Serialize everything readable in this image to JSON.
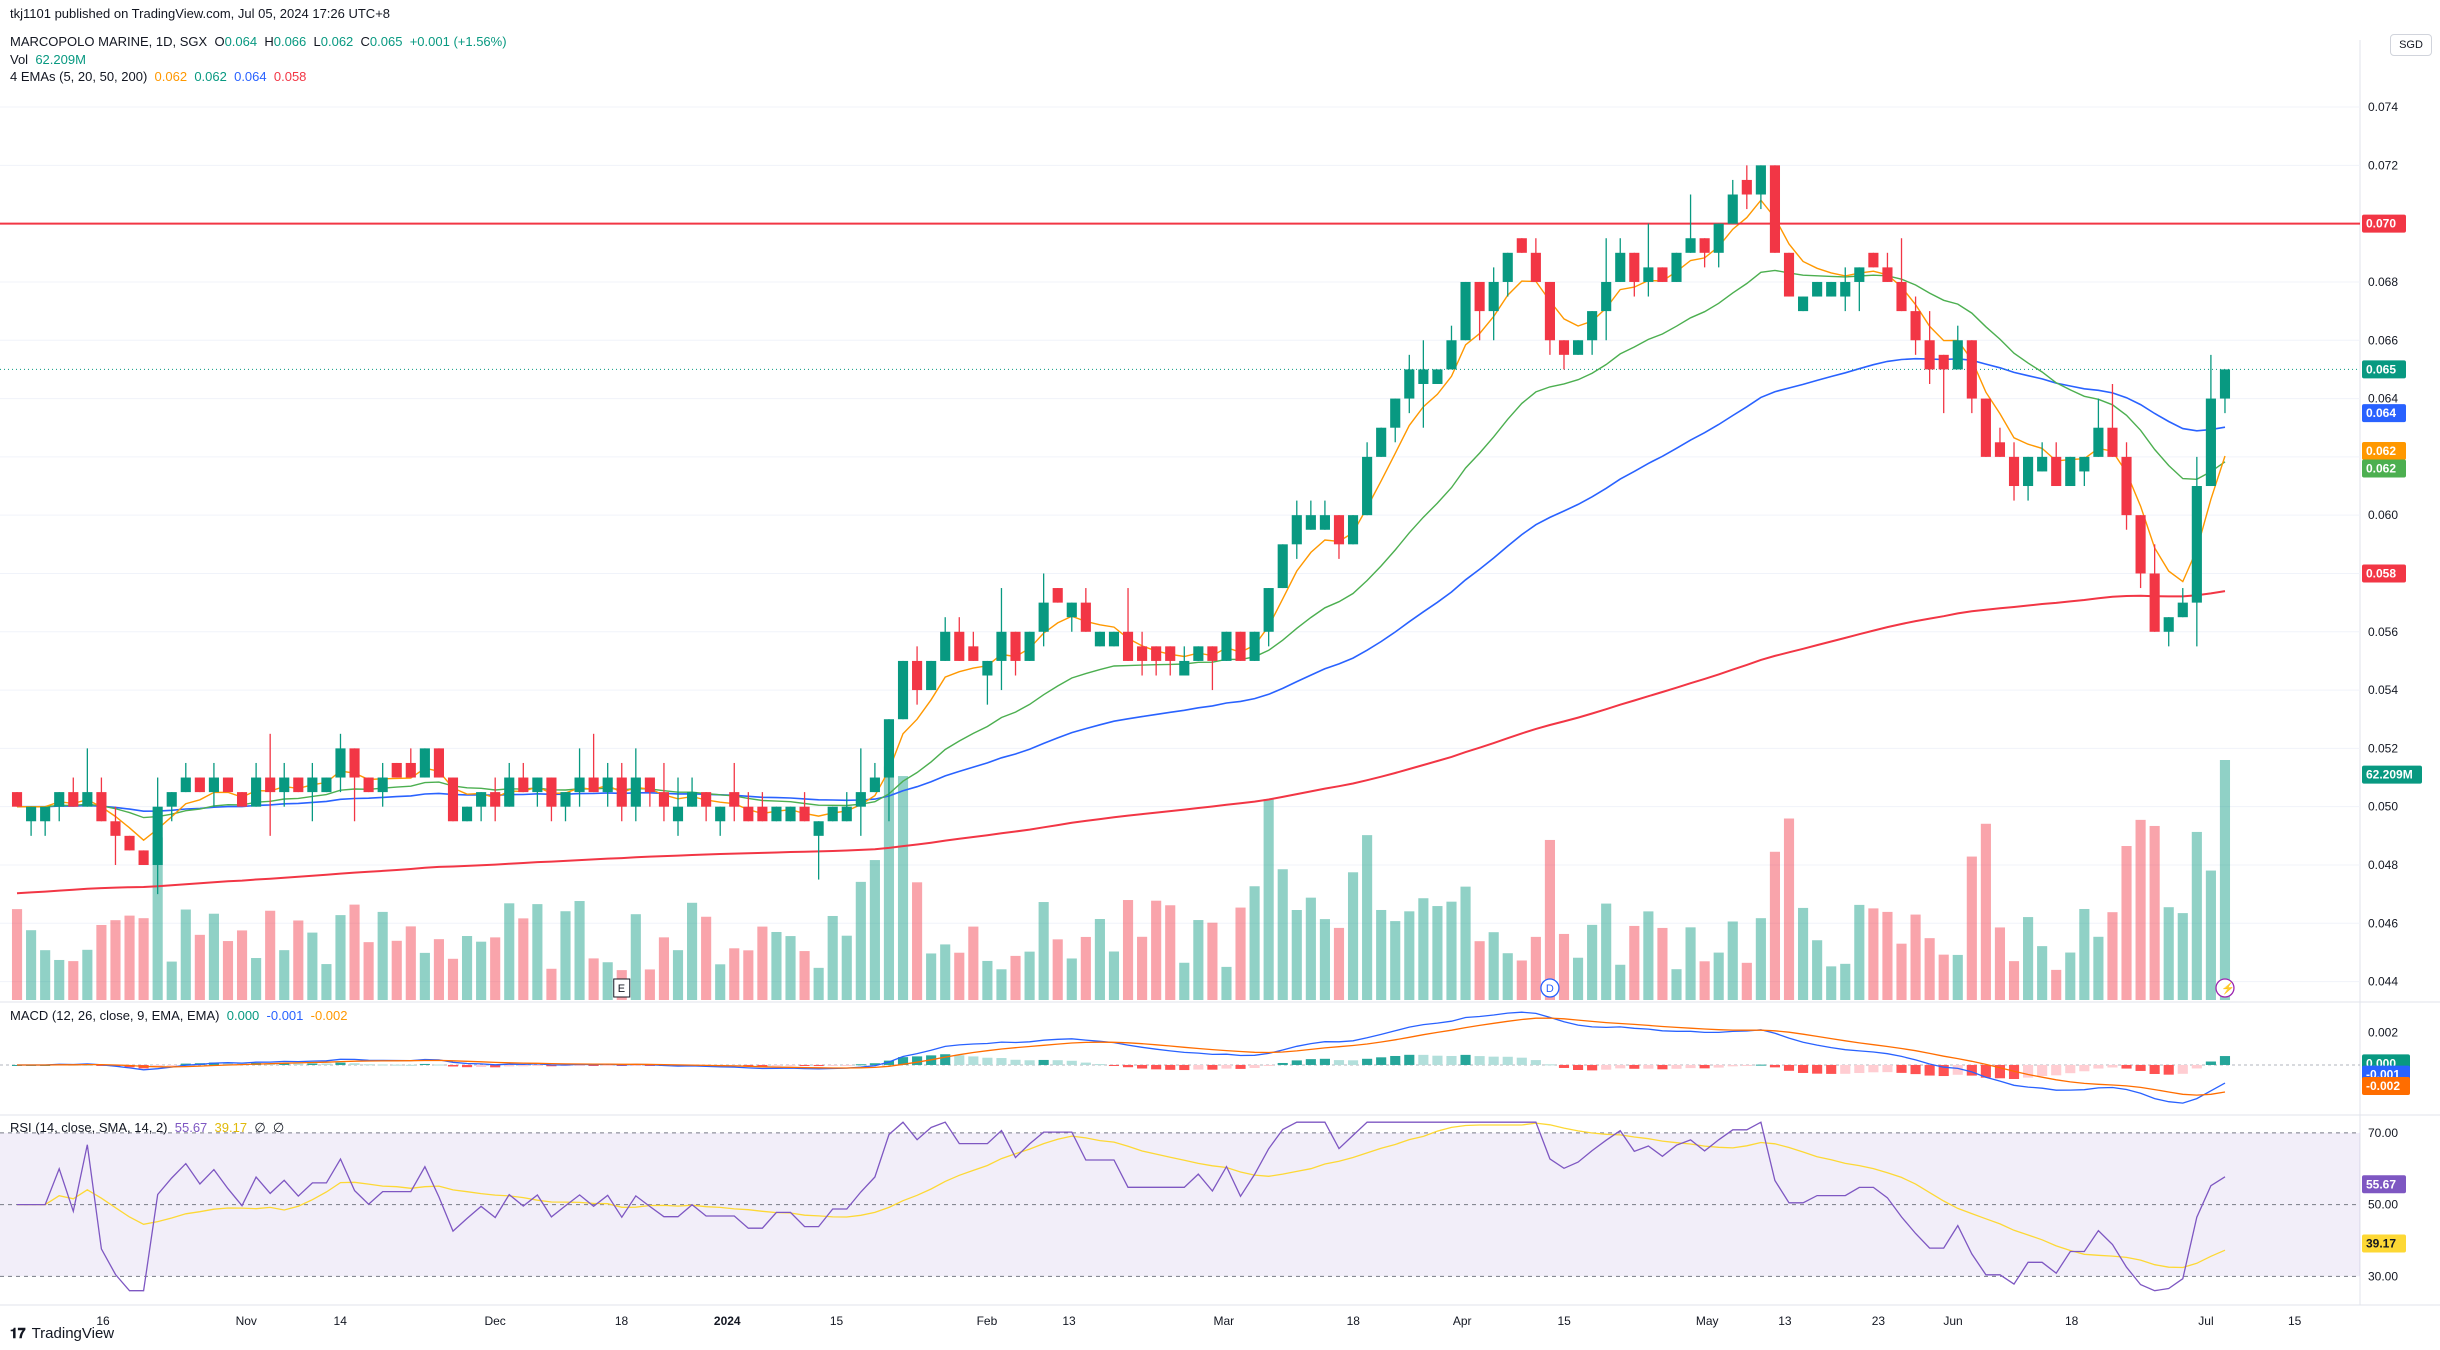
{
  "header": {
    "publisher": "tkj1101 published on TradingView.com, Jul 05, 2024 17:26 UTC+8",
    "symbol": "MARCOPOLO MARINE, 1D, SGX",
    "ohlc": {
      "o_label": "O",
      "o": "0.064",
      "h_label": "H",
      "h": "0.066",
      "l_label": "L",
      "l": "0.062",
      "c_label": "C",
      "c": "0.065",
      "change": "+0.001 (+1.56%)"
    },
    "vol_label": "Vol",
    "vol_value": "62.209M",
    "ema_label": "4 EMAs (5, 20, 50, 200)",
    "ema_values": [
      "0.062",
      "0.062",
      "0.064",
      "0.058"
    ]
  },
  "macd_header": {
    "label": "MACD (12, 26, close, 9, EMA, EMA)",
    "v1": "0.000",
    "v2": "-0.001",
    "v3": "-0.002"
  },
  "rsi_header": {
    "label": "RSI (14, close, SMA, 14, 2)",
    "v1": "55.67",
    "v2": "39.17",
    "v3": "∅",
    "v4": "∅"
  },
  "currency": "SGD",
  "logo": "TradingView",
  "colors": {
    "up": "#089981",
    "down": "#f23645",
    "ema5": "#ff9800",
    "ema20": "#4caf50",
    "ema50": "#2962ff",
    "ema200": "#f23645",
    "rsi": "#7e57c2",
    "rsi_ma": "#fdd835",
    "macd": "#2962ff",
    "signal": "#ff6d00"
  },
  "event_markers": {
    "earnings": "E",
    "dividend": "D",
    "split": "⚡"
  },
  "chart_data": {
    "type": "candlestick",
    "title": "MARCOPOLO MARINE, 1D, SGX",
    "y_axis_labels": [
      "0.074",
      "0.072",
      "0.070",
      "0.068",
      "0.066",
      "0.064",
      "0.062",
      "0.060",
      "0.058",
      "0.056",
      "0.054",
      "0.052",
      "0.050",
      "0.048",
      "0.046",
      "0.044"
    ],
    "ylim": [
      0.0433,
      0.0763
    ],
    "x_axis_labels": [
      "16",
      "Nov",
      "14",
      "Dec",
      "18",
      "2024",
      "15",
      "Feb",
      "13",
      "Mar",
      "18",
      "Apr",
      "15",
      "May",
      "13",
      "23",
      "Jun",
      "18",
      "Jul",
      "15"
    ],
    "resistance_line": 0.07,
    "price_tags": [
      {
        "label": "0.070",
        "value": 0.07,
        "color": "#f23645"
      },
      {
        "label": "0.065",
        "value": 0.065,
        "color": "#089981"
      },
      {
        "label": "0.064",
        "value": 0.0635,
        "color": "#2962ff"
      },
      {
        "label": "0.062",
        "value": 0.0622,
        "color": "#ff9800"
      },
      {
        "label": "0.062",
        "value": 0.0616,
        "color": "#4caf50"
      },
      {
        "label": "0.058",
        "value": 0.058,
        "color": "#f23645"
      },
      {
        "label": "62.209M",
        "value": 0.0511,
        "color": "#089981"
      }
    ],
    "price_series": [
      0.05,
      0.05,
      0.05,
      0.0505,
      0.05,
      0.0505,
      0.0495,
      0.049,
      0.0485,
      0.048,
      0.05,
      0.0505,
      0.051,
      0.0505,
      0.051,
      0.0505,
      0.05,
      0.051,
      0.0505,
      0.051,
      0.0505,
      0.051,
      0.051,
      0.052,
      0.051,
      0.0505,
      0.051,
      0.051,
      0.051,
      0.052,
      0.051,
      0.0495,
      0.05,
      0.0505,
      0.05,
      0.051,
      0.0505,
      0.051,
      0.05,
      0.0505,
      0.051,
      0.0505,
      0.051,
      0.05,
      0.051,
      0.0505,
      0.05,
      0.05,
      0.0505,
      0.05,
      0.05,
      0.05,
      0.0495,
      0.0495,
      0.05,
      0.05,
      0.0495,
      0.0495,
      0.05,
      0.05,
      0.0505,
      0.051,
      0.053,
      0.055,
      0.054,
      0.055,
      0.056,
      0.055,
      0.055,
      0.055,
      0.056,
      0.055,
      0.056,
      0.057,
      0.057,
      0.057,
      0.056,
      0.056,
      0.056,
      0.055,
      0.055,
      0.055,
      0.055,
      0.055,
      0.0555,
      0.055,
      0.056,
      0.055,
      0.056,
      0.0575,
      0.059,
      0.06,
      0.06,
      0.06,
      0.059,
      0.06,
      0.062,
      0.063,
      0.064,
      0.065,
      0.065,
      0.065,
      0.066,
      0.068,
      0.067,
      0.068,
      0.069,
      0.069,
      0.068,
      0.066,
      0.0655,
      0.066,
      0.067,
      0.068,
      0.069,
      0.068,
      0.0685,
      0.068,
      0.069,
      0.0695,
      0.069,
      0.07,
      0.071,
      0.071,
      0.072,
      0.069,
      0.0675,
      0.0675,
      0.068,
      0.068,
      0.068,
      0.0685,
      0.0685,
      0.068,
      0.067,
      0.066,
      0.065,
      0.065,
      0.066,
      0.064,
      0.062,
      0.062,
      0.061,
      0.062,
      0.062,
      0.061,
      0.062,
      0.062,
      0.063,
      0.062,
      0.06,
      0.058,
      0.056,
      0.0565,
      0.057,
      0.061,
      0.064,
      0.065
    ],
    "volume_label": "62.209M",
    "volume_ylim_fraction": [
      0,
      1
    ],
    "macd": {
      "labels": [
        "0.002",
        "0.000",
        "-0.001",
        "-0.002"
      ],
      "ylim": [
        -0.0026,
        0.0034
      ]
    },
    "rsi": {
      "labels": [
        "70.00",
        "55.67",
        "50.00",
        "39.17",
        "30.00"
      ],
      "ylim": [
        22,
        75
      ],
      "bands": [
        30,
        50,
        70
      ],
      "current": 55.67,
      "ma": 39.17
    }
  }
}
